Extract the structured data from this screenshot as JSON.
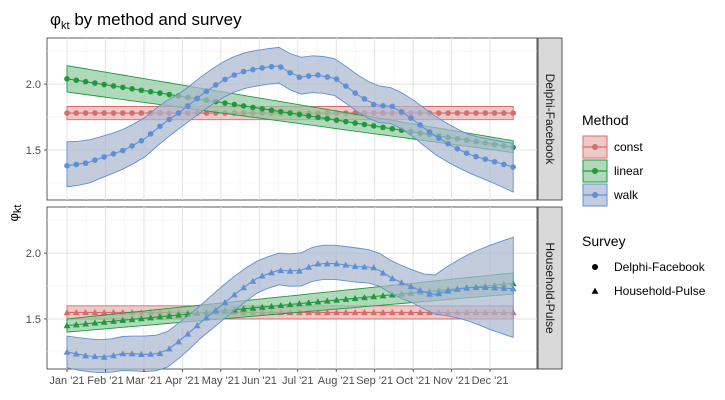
{
  "chart_data": {
    "type": "line",
    "title": {
      "symbol": "φ",
      "subscript": "kt",
      "text": " by method and survey"
    },
    "ylabel": {
      "symbol": "φ",
      "subscript": "kt"
    },
    "xlabel": "",
    "x_ticks": [
      "Jan '21",
      "Feb '21",
      "Mar '21",
      "Apr '21",
      "May '21",
      "Jun '21",
      "Jul '21",
      "Aug '21",
      "Sep '21",
      "Oct '21",
      "Nov '21",
      "Dec '21"
    ],
    "x_range": [
      0,
      11.7
    ],
    "y_ticks": [
      1.5,
      2.0
    ],
    "ylim": [
      1.12,
      2.35
    ],
    "grid": true,
    "legend_method": {
      "title": "Method",
      "entries": [
        {
          "label": "const",
          "color": "#d96b6b",
          "fill": "#e8b0b0"
        },
        {
          "label": "linear",
          "color": "#1e9a3c",
          "fill": "#8fc79c"
        },
        {
          "label": "walk",
          "color": "#5f8fd6",
          "fill": "#a9b6cf"
        }
      ]
    },
    "legend_survey": {
      "title": "Survey",
      "entries": [
        {
          "label": "Delphi-Facebook",
          "shape": "circle"
        },
        {
          "label": "Household-Pulse",
          "shape": "triangle"
        }
      ]
    },
    "panels": [
      {
        "strip": "Delphi-Facebook",
        "shape": "circle",
        "series": [
          {
            "method": "const",
            "x": [
              0,
              11.6
            ],
            "y": [
              1.78,
              1.78
            ],
            "lower": [
              1.73,
              1.73
            ],
            "upper": [
              1.83,
              1.83
            ]
          },
          {
            "method": "linear",
            "x": [
              0,
              11.6
            ],
            "y": [
              2.04,
              1.52
            ],
            "lower": [
              1.94,
              1.48
            ],
            "upper": [
              2.14,
              1.57
            ]
          },
          {
            "method": "walk",
            "x": [
              0,
              0.5,
              1,
              1.5,
              2,
              2.5,
              3,
              3.5,
              4,
              4.5,
              5,
              5.5,
              6,
              6.5,
              7,
              7.5,
              8,
              8.5,
              9,
              9.5,
              10,
              10.5,
              11,
              11.6
            ],
            "y": [
              1.38,
              1.4,
              1.45,
              1.5,
              1.58,
              1.7,
              1.8,
              1.92,
              2.02,
              2.09,
              2.12,
              2.14,
              2.05,
              2.07,
              2.04,
              1.93,
              1.84,
              1.83,
              1.73,
              1.62,
              1.53,
              1.46,
              1.42,
              1.37
            ],
            "lower": [
              1.22,
              1.24,
              1.3,
              1.36,
              1.44,
              1.57,
              1.68,
              1.79,
              1.89,
              1.96,
              1.99,
              2.01,
              1.92,
              1.94,
              1.91,
              1.8,
              1.71,
              1.7,
              1.6,
              1.48,
              1.39,
              1.32,
              1.26,
              1.18
            ],
            "upper": [
              1.56,
              1.57,
              1.61,
              1.66,
              1.74,
              1.86,
              1.94,
              2.06,
              2.16,
              2.23,
              2.26,
              2.28,
              2.2,
              2.22,
              2.19,
              2.08,
              1.99,
              1.97,
              1.88,
              1.77,
              1.68,
              1.61,
              1.58,
              1.55
            ]
          }
        ]
      },
      {
        "strip": "Household-Pulse",
        "shape": "triangle",
        "series": [
          {
            "method": "const",
            "x": [
              0,
              11.6
            ],
            "y": [
              1.55,
              1.55
            ],
            "lower": [
              1.5,
              1.5
            ],
            "upper": [
              1.6,
              1.6
            ]
          },
          {
            "method": "linear",
            "x": [
              0,
              11.6
            ],
            "y": [
              1.45,
              1.77
            ],
            "lower": [
              1.4,
              1.69
            ],
            "upper": [
              1.5,
              1.85
            ]
          },
          {
            "method": "walk",
            "x": [
              0,
              0.5,
              1,
              1.5,
              2,
              2.5,
              3,
              3.5,
              4,
              4.5,
              5,
              5.5,
              6,
              6.5,
              7,
              7.5,
              8,
              8.5,
              9,
              9.5,
              10,
              10.5,
              11,
              11.6
            ],
            "y": [
              1.25,
              1.22,
              1.21,
              1.24,
              1.23,
              1.24,
              1.35,
              1.48,
              1.6,
              1.72,
              1.82,
              1.87,
              1.86,
              1.92,
              1.92,
              1.9,
              1.89,
              1.8,
              1.74,
              1.68,
              1.72,
              1.74,
              1.74,
              1.73
            ],
            "lower": [
              1.13,
              1.1,
              1.09,
              1.11,
              1.1,
              1.11,
              1.22,
              1.36,
              1.48,
              1.6,
              1.71,
              1.76,
              1.74,
              1.8,
              1.8,
              1.78,
              1.77,
              1.68,
              1.62,
              1.54,
              1.52,
              1.48,
              1.42,
              1.36
            ],
            "upper": [
              1.37,
              1.35,
              1.34,
              1.37,
              1.37,
              1.38,
              1.49,
              1.61,
              1.74,
              1.86,
              1.95,
              2.0,
              1.99,
              2.06,
              2.06,
              2.04,
              2.02,
              1.93,
              1.87,
              1.82,
              1.92,
              2.0,
              2.06,
              2.12
            ]
          }
        ]
      }
    ]
  }
}
